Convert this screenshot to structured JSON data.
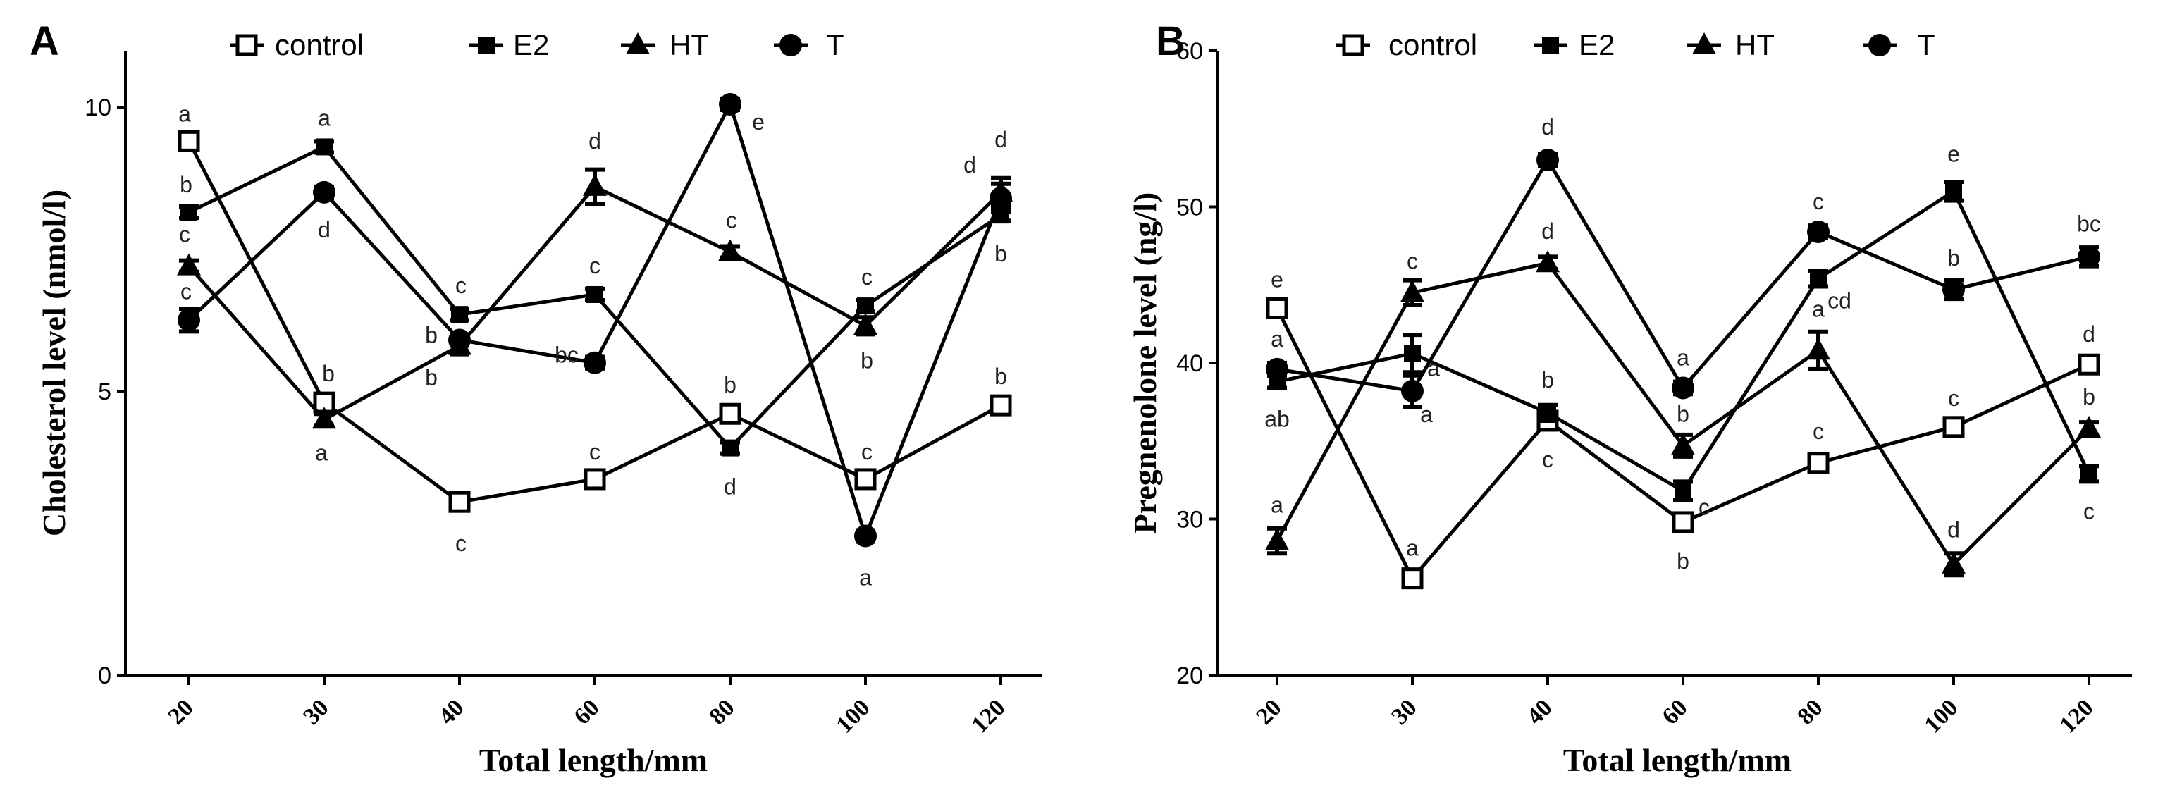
{
  "chart_data": [
    {
      "panel": "A",
      "type": "line",
      "title": "",
      "xlabel": "Total length/mm",
      "ylabel": "Cholesterol level  (nmol/l)",
      "categories": [
        "20",
        "30",
        "40",
        "60",
        "80",
        "100",
        "120"
      ],
      "ylim": [
        0,
        11
      ],
      "yticks": [
        0,
        5,
        10
      ],
      "ytick_labels": [
        "0",
        "5",
        "10"
      ],
      "series": [
        {
          "name": "control",
          "marker": "square-open",
          "values": [
            9.4,
            4.8,
            3.05,
            3.45,
            4.6,
            3.45,
            4.75
          ],
          "errors": [
            0.1,
            0.1,
            0.1,
            0.1,
            0.1,
            0.1,
            0.1
          ],
          "labels": [
            "a",
            "b",
            "c",
            "c",
            "b",
            "c",
            "b"
          ]
        },
        {
          "name": "E2",
          "marker": "square-filled",
          "values": [
            8.15,
            9.3,
            6.35,
            6.7,
            4.0,
            6.5,
            8.1
          ],
          "errors": [
            0.1,
            0.1,
            0.1,
            0.1,
            0.1,
            0.1,
            0.1
          ],
          "labels": [
            "b",
            "a",
            "c",
            "c",
            "d",
            "c",
            "b"
          ]
        },
        {
          "name": "HT",
          "marker": "triangle-filled",
          "values": [
            7.2,
            4.5,
            5.8,
            8.6,
            7.45,
            6.15,
            8.5
          ],
          "errors": [
            0.1,
            0.1,
            0.15,
            0.3,
            0.1,
            0.15,
            0.25
          ],
          "labels": [
            "c",
            "a",
            "b",
            "d",
            "c",
            "b",
            "d"
          ]
        },
        {
          "name": "T",
          "marker": "circle-filled",
          "values": [
            6.25,
            8.5,
            5.9,
            5.5,
            10.05,
            2.45,
            8.4
          ],
          "errors": [
            0.2,
            0.1,
            0.1,
            0.1,
            0.1,
            0.1,
            0.25
          ],
          "labels": [
            "c",
            "d",
            "b",
            "bc",
            "e",
            "a",
            "d"
          ]
        }
      ]
    },
    {
      "panel": "B",
      "type": "line",
      "title": "",
      "xlabel": "Total length/mm",
      "ylabel": "Pregnenolone level  (ng/l)",
      "categories": [
        "20",
        "30",
        "40",
        "60",
        "80",
        "100",
        "120"
      ],
      "ylim": [
        20,
        60
      ],
      "yticks": [
        20,
        30,
        40,
        50,
        60
      ],
      "ytick_labels": [
        "20",
        "30",
        "40",
        "50",
        "60"
      ],
      "series": [
        {
          "name": "control",
          "marker": "square-open",
          "values": [
            43.5,
            26.2,
            36.3,
            29.8,
            33.6,
            35.9,
            39.9
          ],
          "errors": [
            0.3,
            0.3,
            0.3,
            0.3,
            0.3,
            0.3,
            0.3
          ],
          "labels": [
            "e",
            "a",
            "c",
            "b",
            "c",
            "c",
            "d"
          ]
        },
        {
          "name": "E2",
          "marker": "square-filled",
          "values": [
            38.8,
            40.6,
            36.8,
            31.8,
            45.4,
            51.0,
            32.9
          ],
          "errors": [
            0.4,
            1.2,
            0.5,
            0.6,
            0.5,
            0.6,
            0.5
          ],
          "labels": [
            "ab",
            "a",
            "b",
            "c",
            "cd",
            "e",
            "c"
          ]
        },
        {
          "name": "HT",
          "marker": "triangle-filled",
          "values": [
            28.6,
            44.5,
            46.4,
            34.7,
            40.8,
            27.1,
            35.8
          ],
          "errors": [
            0.8,
            0.8,
            0.4,
            0.7,
            1.2,
            0.7,
            0.4
          ],
          "labels": [
            "a",
            "c",
            "d",
            "b",
            "a",
            "d",
            "b"
          ]
        },
        {
          "name": "T",
          "marker": "circle-filled",
          "values": [
            39.6,
            38.2,
            53.0,
            38.4,
            48.4,
            44.7,
            46.8
          ],
          "errors": [
            0.4,
            1.0,
            0.4,
            0.4,
            0.4,
            0.6,
            0.6
          ],
          "labels": [
            "a",
            "a",
            "d",
            "a",
            "c",
            "b",
            "bc"
          ]
        }
      ]
    }
  ]
}
